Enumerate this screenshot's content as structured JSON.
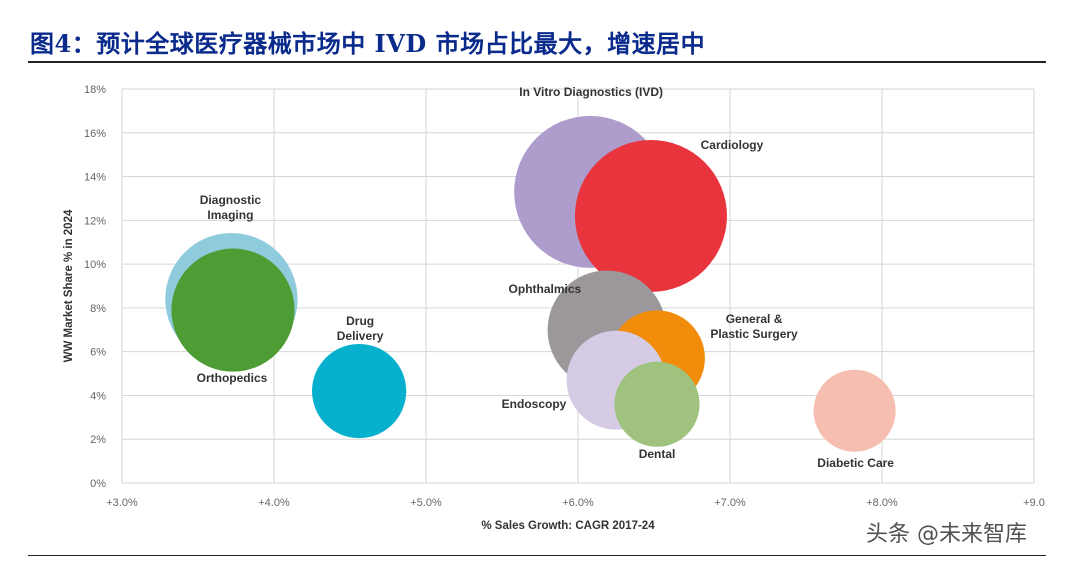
{
  "figure": {
    "title": "图4：预计全球医疗器械市场中 IVD 市场占比最大，增速居中",
    "watermark": "头条 @未来智库"
  },
  "chart_data": {
    "type": "scatter",
    "subtype": "bubble",
    "xlabel": "% Sales Growth: CAGR 2017-24",
    "ylabel": "WW Market Share % in 2024",
    "xlim": [
      3.0,
      9.0
    ],
    "ylim": [
      0,
      18
    ],
    "x_ticks": [
      3.0,
      4.0,
      5.0,
      6.0,
      7.0,
      8.0,
      9.0
    ],
    "x_tick_labels": [
      "+3.0%",
      "+4.0%",
      "+5.0%",
      "+6.0%",
      "+7.0%",
      "+8.0%",
      "+9.0"
    ],
    "y_ticks": [
      0,
      2,
      4,
      6,
      8,
      10,
      12,
      14,
      16,
      18
    ],
    "y_tick_labels": [
      "0%",
      "2%",
      "4%",
      "6%",
      "8%",
      "10%",
      "12%",
      "14%",
      "16%",
      "18%"
    ],
    "grid": true,
    "legend": "none",
    "series": [
      {
        "label_lines": [
          "Diagnostic",
          "Imaging"
        ],
        "x": 3.72,
        "y": 8.4,
        "relative_size": 0.87,
        "color": "#8ecbdc"
      },
      {
        "label_lines": [
          "Orthopedics"
        ],
        "x": 3.73,
        "y": 7.9,
        "relative_size": 0.81,
        "color": "#4e9d34"
      },
      {
        "label_lines": [
          "Drug",
          "Delivery"
        ],
        "x": 4.56,
        "y": 4.2,
        "relative_size": 0.62,
        "color": "#07b1cd"
      },
      {
        "label_lines": [
          "In Vitro Diagnostics (IVD)"
        ],
        "x": 6.08,
        "y": 13.3,
        "relative_size": 1.0,
        "color": "#ae9dcc"
      },
      {
        "label_lines": [
          "Cardiology"
        ],
        "x": 6.48,
        "y": 12.2,
        "relative_size": 1.0,
        "color": "#e8343c"
      },
      {
        "label_lines": [
          "Ophthalmics"
        ],
        "x": 6.19,
        "y": 7.0,
        "relative_size": 0.78,
        "color": "#9b979b"
      },
      {
        "label_lines": [
          "General &",
          "Plastic Surgery"
        ],
        "x": 6.52,
        "y": 5.7,
        "relative_size": 0.63,
        "color": "#f18d0b"
      },
      {
        "label_lines": [
          "Endoscopy"
        ],
        "x": 6.25,
        "y": 4.7,
        "relative_size": 0.65,
        "color": "#d5cbe5"
      },
      {
        "label_lines": [
          "Dental"
        ],
        "x": 6.52,
        "y": 3.6,
        "relative_size": 0.56,
        "color": "#9fc37f"
      },
      {
        "label_lines": [
          "Diabetic Care"
        ],
        "x": 7.82,
        "y": 3.3,
        "relative_size": 0.54,
        "color": "#f6beb0"
      }
    ]
  }
}
